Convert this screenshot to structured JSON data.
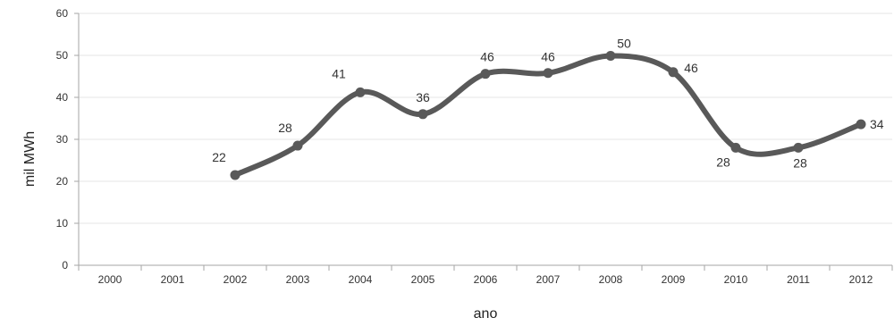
{
  "chart_data": {
    "type": "line",
    "title": "",
    "xlabel": "ano",
    "ylabel": "mil MWh",
    "categories": [
      "2000",
      "2001",
      "2002",
      "2003",
      "2004",
      "2005",
      "2006",
      "2007",
      "2008",
      "2009",
      "2010",
      "2011",
      "2012"
    ],
    "ylim": [
      0,
      60
    ],
    "yticks": [
      0,
      10,
      20,
      30,
      40,
      50,
      60
    ],
    "grid": true,
    "legend": "none",
    "smooth": true,
    "series": [
      {
        "color": "#595959",
        "points": [
          {
            "x": "2002",
            "y": 21.5,
            "label": "22"
          },
          {
            "x": "2003",
            "y": 28.5,
            "label": "28"
          },
          {
            "x": "2004",
            "y": 41.2,
            "label": "41"
          },
          {
            "x": "2005",
            "y": 36.0,
            "label": "36"
          },
          {
            "x": "2006",
            "y": 45.6,
            "label": "46"
          },
          {
            "x": "2007",
            "y": 45.8,
            "label": "46"
          },
          {
            "x": "2008",
            "y": 49.9,
            "label": "50"
          },
          {
            "x": "2009",
            "y": 46.0,
            "label": "46"
          },
          {
            "x": "2010",
            "y": 28.0,
            "label": "28"
          },
          {
            "x": "2011",
            "y": 28.0,
            "label": "28"
          },
          {
            "x": "2012",
            "y": 33.6,
            "label": "34"
          }
        ]
      }
    ]
  }
}
